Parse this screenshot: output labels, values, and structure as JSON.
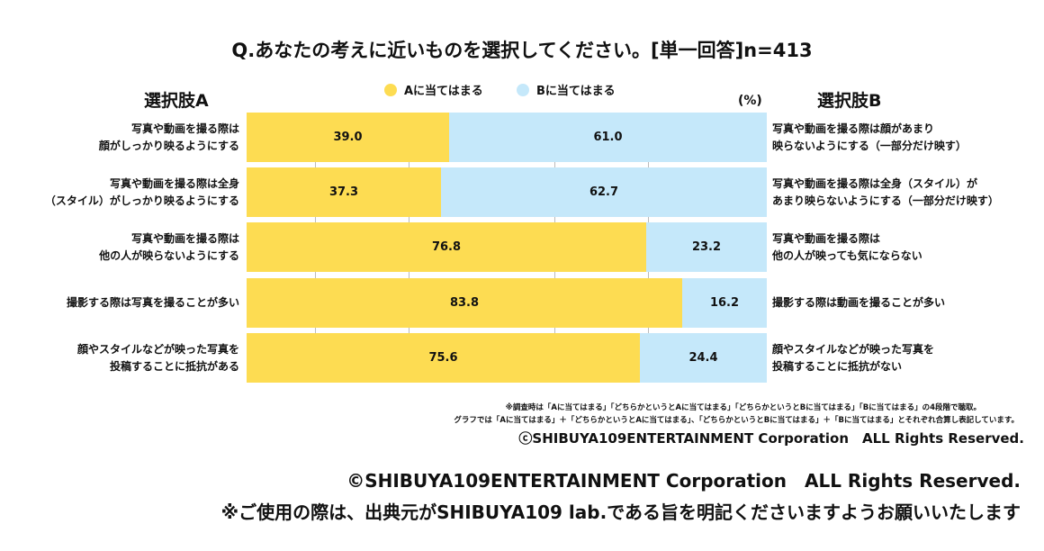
{
  "chart_data": {
    "type": "bar",
    "stacked": true,
    "orientation": "horizontal",
    "title": "Q.あなたの考えに近いものを選択してください。[単一回答]n=413",
    "unit": "(%)",
    "header_a": "選択肢A",
    "header_b": "選択肢B",
    "legend": [
      {
        "name": "Aに当てはまる",
        "color": "#fddc52"
      },
      {
        "name": "Bに当てはまる",
        "color": "#c5e8fa"
      }
    ],
    "xlim": [
      0,
      100
    ],
    "rows": [
      {
        "a_label": [
          "写真や動画を撮る際は",
          "顔がしっかり映るようにする"
        ],
        "b_label": [
          "写真や動画を撮る際は顔があまり",
          "映らないようにする（一部分だけ映す）"
        ],
        "a": 39.0,
        "b": 61.0
      },
      {
        "a_label": [
          "写真や動画を撮る際は全身",
          "（スタイル）がしっかり映るようにする"
        ],
        "b_label": [
          "写真や動画を撮る際は全身（スタイル）が",
          "あまり映らないようにする（一部分だけ映す）"
        ],
        "a": 37.3,
        "b": 62.7
      },
      {
        "a_label": [
          "写真や動画を撮る際は",
          "他の人が映らないようにする"
        ],
        "b_label": [
          "写真や動画を撮る際は",
          "他の人が映っても気にならない"
        ],
        "a": 76.8,
        "b": 23.2
      },
      {
        "a_label": [
          "撮影する際は写真を撮ることが多い"
        ],
        "b_label": [
          "撮影する際は動画を撮ることが多い"
        ],
        "a": 83.8,
        "b": 16.2
      },
      {
        "a_label": [
          "顔やスタイルなどが映った写真を",
          "投稿することに抵抗がある"
        ],
        "b_label": [
          "顔やスタイルなどが映った写真を",
          "投稿することに抵抗がない"
        ],
        "a": 75.6,
        "b": 24.4
      }
    ]
  },
  "notes": [
    "※調査時は「Aに当てはまる」「どちらかというとAに当てはまる」「どちらかというとBに当てはまる」「Bに当てはまる」の4段階で聴取。",
    "グラフでは「Aに当てはまる」＋「どちらかというとAに当てはまる」、「どちらかというとBに当てはまる」＋「Bに当てはまる」とそれぞれ合算し表記しています。"
  ],
  "copyright_small": "ⓒSHIBUYA109ENTERTAINMENT Corporation　ALL Rights Reserved.",
  "copyright_large": "©SHIBUYA109ENTERTAINMENT Corporation　ALL Rights Reserved.",
  "usage_note": "※ご使用の際は、出典元がSHIBUYA109 lab.である旨を明記くださいますようお願いいたします"
}
